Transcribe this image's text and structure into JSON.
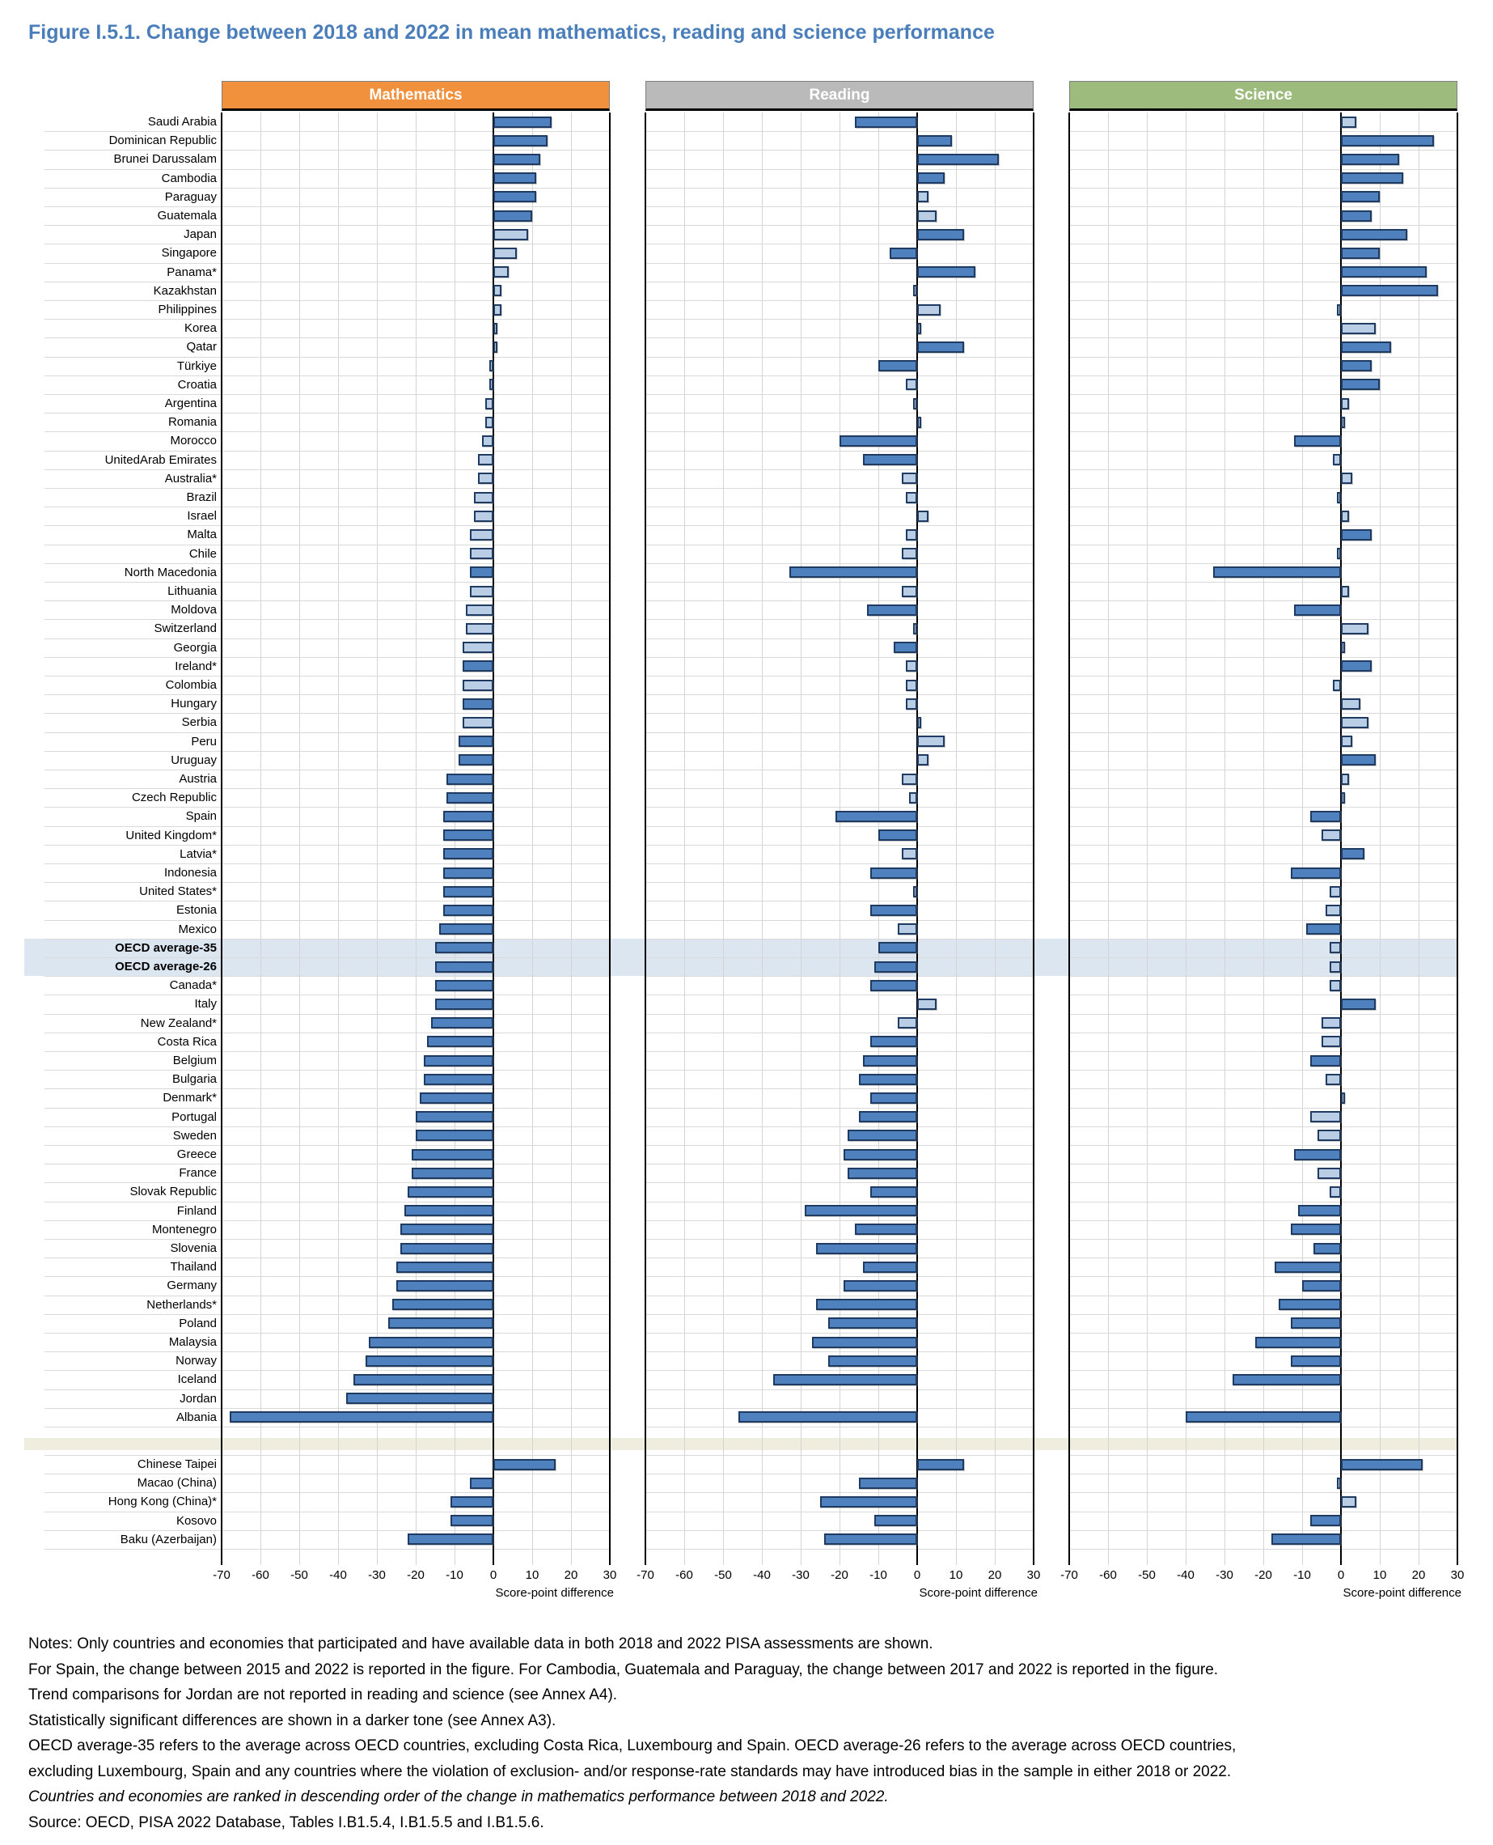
{
  "chart_data": {
    "type": "bar",
    "orientation": "horizontal",
    "title": "Figure I.5.1. Change between 2018 and 2022 in mean mathematics, reading and science performance",
    "panels": [
      {
        "label": "Mathematics",
        "header_color": "#F2913D"
      },
      {
        "label": "Reading",
        "header_color": "#BABABA"
      },
      {
        "label": "Science",
        "header_color": "#9CBB7C"
      }
    ],
    "xlabel": "Score-point difference",
    "xlim": [
      -70,
      30
    ],
    "xticks": [
      -70,
      -60,
      -50,
      -40,
      -30,
      -20,
      -10,
      0,
      10,
      20,
      30
    ],
    "grid": true,
    "significance_note": "darker tone = statistically significant difference",
    "row_format": [
      "country",
      "math",
      "math_significant",
      "reading",
      "reading_significant",
      "science",
      "science_significant"
    ],
    "rows": [
      [
        "Saudi Arabia",
        15,
        true,
        -16,
        true,
        4,
        false
      ],
      [
        "Dominican Republic",
        14,
        true,
        9,
        true,
        24,
        true
      ],
      [
        "Brunei Darussalam",
        12,
        true,
        21,
        true,
        15,
        true
      ],
      [
        "Cambodia",
        11,
        true,
        7,
        true,
        16,
        true
      ],
      [
        "Paraguay",
        11,
        true,
        3,
        false,
        10,
        true
      ],
      [
        "Guatemala",
        10,
        true,
        5,
        false,
        8,
        true
      ],
      [
        "Japan",
        9,
        false,
        12,
        true,
        17,
        true
      ],
      [
        "Singapore",
        6,
        false,
        -7,
        true,
        10,
        true
      ],
      [
        "Panama*",
        4,
        false,
        15,
        true,
        22,
        true
      ],
      [
        "Kazakhstan",
        2,
        false,
        -1,
        false,
        25,
        true
      ],
      [
        "Philippines",
        2,
        false,
        6,
        false,
        -1,
        false
      ],
      [
        "Korea",
        1,
        false,
        1,
        false,
        9,
        false
      ],
      [
        "Qatar",
        0,
        false,
        12,
        true,
        13,
        true
      ],
      [
        "Türkiye",
        -1,
        false,
        -10,
        true,
        8,
        true
      ],
      [
        "Croatia",
        -1,
        false,
        -3,
        false,
        10,
        true
      ],
      [
        "Argentina",
        -2,
        false,
        -1,
        false,
        2,
        false
      ],
      [
        "Romania",
        -2,
        false,
        1,
        false,
        1,
        false
      ],
      [
        "Morocco",
        -3,
        false,
        -20,
        true,
        -12,
        true
      ],
      [
        "UnitedArab Emirates",
        -4,
        false,
        -14,
        true,
        -2,
        false
      ],
      [
        "Australia*",
        -4,
        false,
        -4,
        false,
        3,
        false
      ],
      [
        "Brazil",
        -5,
        false,
        -3,
        false,
        -1,
        false
      ],
      [
        "Israel",
        -5,
        false,
        3,
        false,
        2,
        false
      ],
      [
        "Malta",
        -6,
        false,
        -3,
        false,
        8,
        true
      ],
      [
        "Chile",
        -6,
        false,
        -4,
        false,
        -1,
        false
      ],
      [
        "North Macedonia",
        -6,
        true,
        -33,
        true,
        -33,
        true
      ],
      [
        "Lithuania",
        -6,
        false,
        -4,
        false,
        2,
        false
      ],
      [
        "Moldova",
        -7,
        false,
        -13,
        true,
        -12,
        true
      ],
      [
        "Switzerland",
        -7,
        false,
        -1,
        false,
        7,
        false
      ],
      [
        "Georgia",
        -8,
        false,
        -6,
        true,
        1,
        false
      ],
      [
        "Ireland*",
        -8,
        true,
        -3,
        false,
        8,
        true
      ],
      [
        "Colombia",
        -8,
        false,
        -3,
        false,
        -2,
        false
      ],
      [
        "Hungary",
        -8,
        true,
        -3,
        false,
        5,
        false
      ],
      [
        "Serbia",
        -8,
        false,
        1,
        false,
        7,
        false
      ],
      [
        "Peru",
        -9,
        true,
        7,
        false,
        3,
        false
      ],
      [
        "Uruguay",
        -9,
        true,
        3,
        false,
        9,
        true
      ],
      [
        "Austria",
        -12,
        true,
        -4,
        false,
        2,
        false
      ],
      [
        "Czech Republic",
        -12,
        true,
        -2,
        false,
        1,
        false
      ],
      [
        "Spain",
        -13,
        true,
        -21,
        true,
        -8,
        true
      ],
      [
        "United Kingdom*",
        -13,
        true,
        -10,
        true,
        -5,
        false
      ],
      [
        "Latvia*",
        -13,
        true,
        -4,
        false,
        6,
        true
      ],
      [
        "Indonesia",
        -13,
        true,
        -12,
        true,
        -13,
        true
      ],
      [
        "United States*",
        -13,
        true,
        -1,
        false,
        -3,
        false
      ],
      [
        "Estonia",
        -13,
        true,
        -12,
        true,
        -4,
        false
      ],
      [
        "Mexico",
        -14,
        true,
        -5,
        false,
        -9,
        true
      ],
      [
        "OECD average-35",
        -15,
        true,
        -10,
        true,
        -3,
        false
      ],
      [
        "OECD average-26",
        -15,
        true,
        -11,
        true,
        -3,
        false
      ],
      [
        "Canada*",
        -15,
        true,
        -12,
        true,
        -3,
        false
      ],
      [
        "Italy",
        -15,
        true,
        5,
        false,
        9,
        true
      ],
      [
        "New Zealand*",
        -16,
        true,
        -5,
        false,
        -5,
        false
      ],
      [
        "Costa Rica",
        -17,
        true,
        -12,
        true,
        -5,
        false
      ],
      [
        "Belgium",
        -18,
        true,
        -14,
        true,
        -8,
        true
      ],
      [
        "Bulgaria",
        -18,
        true,
        -15,
        true,
        -4,
        false
      ],
      [
        "Denmark*",
        -19,
        true,
        -12,
        true,
        1,
        false
      ],
      [
        "Portugal",
        -20,
        true,
        -15,
        true,
        -8,
        false
      ],
      [
        "Sweden",
        -20,
        true,
        -18,
        true,
        -6,
        false
      ],
      [
        "Greece",
        -21,
        true,
        -19,
        true,
        -12,
        true
      ],
      [
        "France",
        -21,
        true,
        -18,
        true,
        -6,
        false
      ],
      [
        "Slovak Republic",
        -22,
        true,
        -12,
        true,
        -3,
        false
      ],
      [
        "Finland",
        -23,
        true,
        -29,
        true,
        -11,
        true
      ],
      [
        "Montenegro",
        -24,
        true,
        -16,
        true,
        -13,
        true
      ],
      [
        "Slovenia",
        -24,
        true,
        -26,
        true,
        -7,
        true
      ],
      [
        "Thailand",
        -25,
        true,
        -14,
        true,
        -17,
        true
      ],
      [
        "Germany",
        -25,
        true,
        -19,
        true,
        -10,
        true
      ],
      [
        "Netherlands*",
        -26,
        true,
        -26,
        true,
        -16,
        true
      ],
      [
        "Poland",
        -27,
        true,
        -23,
        true,
        -13,
        true
      ],
      [
        "Malaysia",
        -32,
        true,
        -27,
        true,
        -22,
        true
      ],
      [
        "Norway",
        -33,
        true,
        -23,
        true,
        -13,
        true
      ],
      [
        "Iceland",
        -36,
        true,
        -37,
        true,
        -28,
        true
      ],
      [
        "Jordan",
        -38,
        true,
        null,
        false,
        null,
        false
      ],
      [
        "Albania",
        -68,
        true,
        -46,
        true,
        -40,
        true
      ]
    ],
    "annex_rows": [
      [
        "Chinese Taipei",
        16,
        true,
        12,
        true,
        21,
        true
      ],
      [
        "Macao (China)",
        -6,
        true,
        -15,
        true,
        -1,
        false
      ],
      [
        "Hong Kong (China)*",
        -11,
        true,
        -25,
        true,
        4,
        false
      ],
      [
        "Kosovo",
        -11,
        true,
        -11,
        true,
        -8,
        true
      ],
      [
        "Baku (Azerbaijan)",
        -22,
        true,
        -24,
        true,
        -18,
        true
      ]
    ],
    "highlight_rows": [
      "OECD average-35",
      "OECD average-26"
    ]
  },
  "notes": [
    {
      "text": "Notes: Only countries and economies that participated and have available data in both 2018 and 2022 PISA assessments are shown.",
      "italic": false
    },
    {
      "text": "For Spain, the change between 2015 and 2022 is reported in the figure. For Cambodia, Guatemala and Paraguay, the change between 2017 and 2022 is reported in the figure.",
      "italic": false
    },
    {
      "text": "Trend comparisons for Jordan are not reported in reading and science (see Annex A4).",
      "italic": false
    },
    {
      "text": "Statistically significant differences are shown in a darker tone (see Annex A3).",
      "italic": false
    },
    {
      "text": "OECD average-35 refers to the average across OECD countries, excluding Costa Rica, Luxembourg and Spain. OECD average-26 refers to the average across OECD countries,",
      "italic": false
    },
    {
      "text": "excluding Luxembourg, Spain and any countries where the violation of exclusion- and/or response-rate standards may have introduced bias in the sample in either 2018 or 2022.",
      "italic": false
    },
    {
      "text": "Countries and economies are ranked in descending order of the change in mathematics performance between 2018 and 2022.",
      "italic": true
    },
    {
      "text": "Source: OECD, PISA 2022 Database, Tables I.B1.5.4, I.B1.5.5 and I.B1.5.6.",
      "italic": false
    }
  ],
  "colors": {
    "title": "#4A7EBA",
    "bar_significant": "#4E81BD",
    "bar_not_significant": "#B9CDE4",
    "bar_border": "#1F3B61",
    "gridline": "#D4D4D4",
    "row_line": "#D9D9D9",
    "axis_line": "#000000",
    "highlight_band": "#DCE6F1",
    "separator_band": "#EFEDDD",
    "header_text": "#FFFFFF"
  }
}
